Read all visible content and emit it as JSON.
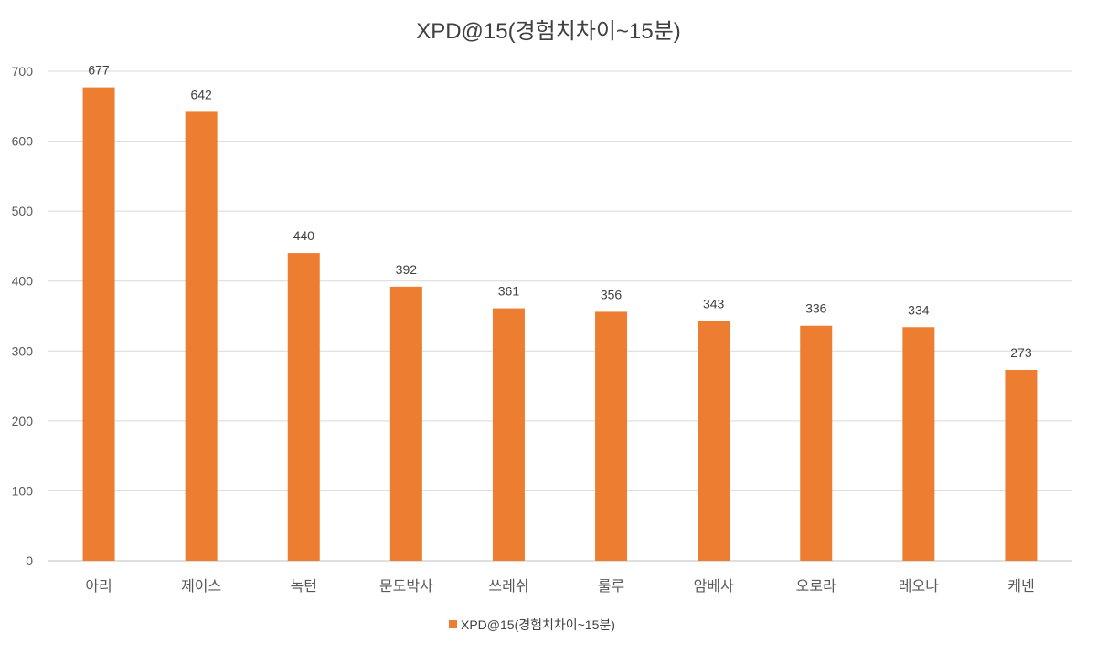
{
  "chart_data": {
    "type": "bar",
    "title": "XPD@15(경험치차이~15분)",
    "xlabel": "",
    "ylabel": "",
    "ylim": [
      0,
      700
    ],
    "yticks": [
      0,
      100,
      200,
      300,
      400,
      500,
      600,
      700
    ],
    "grid": true,
    "legend_position": "bottom",
    "categories": [
      "아리",
      "제이스",
      "녹턴",
      "문도박사",
      "쓰레쉬",
      "룰루",
      "암베사",
      "오로라",
      "레오나",
      "케넨"
    ],
    "series": [
      {
        "name": "XPD@15(경험치차이~15분)",
        "color": "#ED7D31",
        "values": [
          677,
          642,
          440,
          392,
          361,
          356,
          343,
          336,
          334,
          273
        ]
      }
    ]
  }
}
